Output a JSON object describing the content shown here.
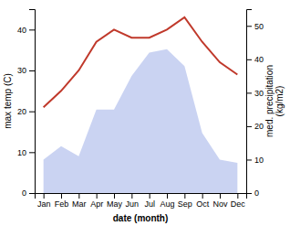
{
  "chart_data": {
    "type": "line",
    "categories": [
      "Jan",
      "Feb",
      "Mar",
      "Apr",
      "May",
      "Jun",
      "Jul",
      "Aug",
      "Sep",
      "Oct",
      "Nov",
      "Dec"
    ],
    "xlabel": "date (month)",
    "ylabel": "max temp (C)",
    "y2label": "med. precipitation\n(kg/m2)",
    "series": [
      {
        "type": "area",
        "axis": "y2",
        "color": "#b8c4ee",
        "values": [
          10,
          14,
          11,
          25,
          25,
          35,
          42,
          43,
          38,
          18,
          10,
          9
        ]
      },
      {
        "type": "line",
        "color": "#c0392b",
        "values": [
          21,
          25,
          30,
          37,
          40,
          38,
          38,
          40,
          43,
          37,
          32,
          29
        ]
      }
    ],
    "ylim": [
      0,
      45
    ],
    "yticks": [
      0,
      10,
      20,
      30,
      40
    ],
    "y2lim": [
      0,
      55
    ],
    "y2ticks": [
      0,
      10,
      20,
      30,
      40,
      50
    ],
    "grid": false
  }
}
